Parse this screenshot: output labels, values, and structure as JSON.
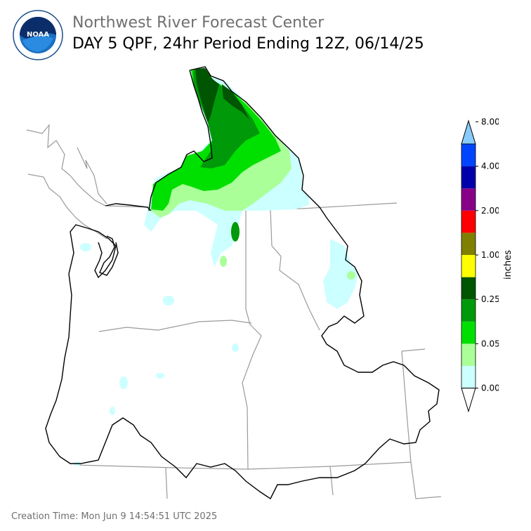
{
  "header": {
    "org_title": "Northwest River Forecast Center",
    "product_title": "DAY 5 QPF, 24hr Period Ending 12Z, 06/14/25",
    "logo_text": "NOAA"
  },
  "legend": {
    "units": "inches",
    "tick_labels": [
      "0.00",
      "0.05",
      "0.25",
      "1.00",
      "2.00",
      "4.00",
      "8.00"
    ],
    "colors": [
      "#ffffff",
      "#ccffff",
      "#aaff99",
      "#00e000",
      "#00990a",
      "#005500",
      "#ffff00",
      "#808000",
      "#ff0000",
      "#880088",
      "#0000aa",
      "#0044ff",
      "#88ccff"
    ]
  },
  "footer": {
    "creation_label": "Creation Time:",
    "creation_value": "Mon Jun 9 14:54:51 UTC 2025"
  }
}
